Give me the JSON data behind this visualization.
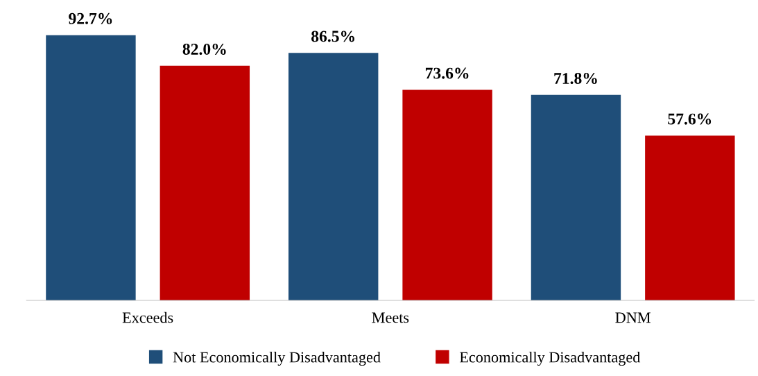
{
  "chart_data": {
    "type": "bar",
    "categories": [
      "Exceeds",
      "Meets",
      "DNM"
    ],
    "series": [
      {
        "name": "Not Economically Disadvantaged",
        "color": "#1f4e79",
        "values": [
          92.7,
          86.5,
          71.8
        ],
        "value_labels": [
          "92.7%",
          "86.5%",
          "71.8%"
        ]
      },
      {
        "name": "Economically Disadvantaged",
        "color": "#c00000",
        "values": [
          82.0,
          73.6,
          57.6
        ],
        "value_labels": [
          "82.0%",
          "73.6%",
          "57.6%"
        ]
      }
    ],
    "tick_labels": "x",
    "grid": false,
    "legend": "bottom"
  }
}
